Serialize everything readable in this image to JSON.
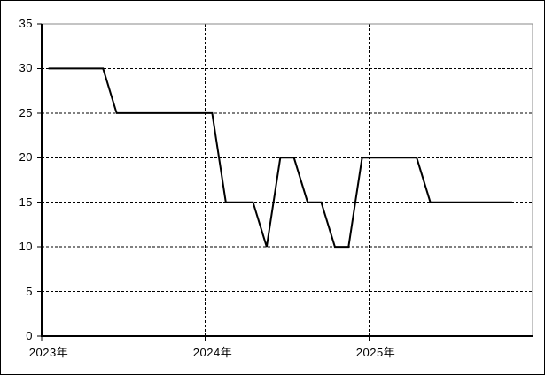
{
  "window": {
    "background": "#ffffff",
    "outer_border_color": "#000000"
  },
  "chart_data": {
    "type": "line",
    "title": "",
    "xlabel": "",
    "ylabel": "",
    "legend": null,
    "x_axis": {
      "tick_labels": [
        "2023年",
        "2024年",
        "2025年"
      ],
      "tick_month_indices": [
        0,
        12,
        24
      ],
      "total_month_slots": 36
    },
    "y_axis": {
      "ticks": [
        0,
        5,
        10,
        15,
        20,
        25,
        30,
        35
      ],
      "tick_labels": [
        "0",
        "5",
        "10",
        "15",
        "20",
        "25",
        "30",
        "35"
      ],
      "ylim": [
        0,
        35
      ]
    },
    "grid": {
      "style": "dashed",
      "color": "#000000",
      "vertical_at_month_indices": [
        12,
        24
      ]
    },
    "plot_border": {
      "top_right_color": "#888888",
      "axis_color": "#000000"
    },
    "series": [
      {
        "name": "series-1",
        "color": "#000000",
        "x_months": [
          "2023-01",
          "2023-02",
          "2023-03",
          "2023-04",
          "2023-05",
          "2023-06",
          "2023-07",
          "2023-08",
          "2023-09",
          "2023-10",
          "2023-11",
          "2023-12",
          "2024-01",
          "2024-02",
          "2024-03",
          "2024-04",
          "2024-05",
          "2024-06",
          "2024-07",
          "2024-08",
          "2024-09",
          "2024-10",
          "2024-11",
          "2024-12",
          "2025-01",
          "2025-02",
          "2025-03",
          "2025-04",
          "2025-05",
          "2025-06",
          "2025-07",
          "2025-08",
          "2025-09",
          "2025-10",
          "2025-11"
        ],
        "values": [
          30,
          30,
          30,
          30,
          30,
          25,
          25,
          25,
          25,
          25,
          25,
          25,
          25,
          15,
          15,
          15,
          10,
          20,
          20,
          15,
          15,
          10,
          10,
          20,
          20,
          20,
          20,
          20,
          15,
          15,
          15,
          15,
          15,
          15,
          15
        ]
      }
    ]
  }
}
